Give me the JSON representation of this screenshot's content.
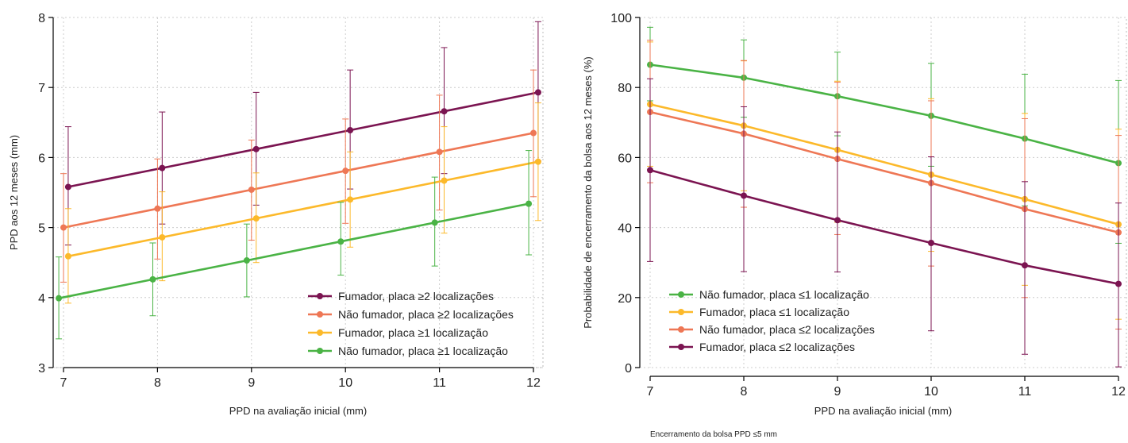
{
  "chart_data": [
    {
      "type": "line",
      "title": "",
      "xlabel": "PPD na avaliação inicial (mm)",
      "ylabel": "PPD aos 12 meses (mm)",
      "xlim": [
        7,
        12
      ],
      "ylim": [
        3,
        8
      ],
      "xticks": [
        7,
        8,
        9,
        10,
        11,
        12
      ],
      "yticks": [
        3,
        4,
        5,
        6,
        7,
        8
      ],
      "grid": true,
      "legend_position": "bottom-right",
      "series": [
        {
          "name": "Fumador, placa ≥2 localizações",
          "color": "#7b1451",
          "offset": 0.05,
          "x": [
            7,
            8,
            9,
            10,
            11,
            12
          ],
          "y": [
            5.58,
            5.85,
            6.12,
            6.39,
            6.66,
            6.93
          ],
          "lower": [
            4.75,
            5.05,
            5.32,
            5.55,
            5.77,
            5.95
          ],
          "upper": [
            6.44,
            6.65,
            6.93,
            7.25,
            7.57,
            7.94
          ]
        },
        {
          "name": "Não fumador, placa ≥2 localizações",
          "color": "#ee7755",
          "offset": 0.0,
          "x": [
            7,
            8,
            9,
            10,
            11,
            12
          ],
          "y": [
            5.0,
            5.27,
            5.54,
            5.81,
            6.08,
            6.35
          ],
          "lower": [
            4.22,
            4.55,
            4.82,
            5.06,
            5.25,
            5.44
          ],
          "upper": [
            5.77,
            5.98,
            6.25,
            6.55,
            6.89,
            7.25
          ]
        },
        {
          "name": "Fumador, placa  ≥1 localização",
          "color": "#fcb92a",
          "offset": 0.05,
          "x": [
            7,
            8,
            9,
            10,
            11,
            12
          ],
          "y": [
            4.59,
            4.86,
            5.13,
            5.4,
            5.67,
            5.94
          ],
          "lower": [
            3.92,
            4.24,
            4.5,
            4.72,
            4.92,
            5.1
          ],
          "upper": [
            5.27,
            5.51,
            5.78,
            6.08,
            6.44,
            6.78
          ]
        },
        {
          "name": "Não fumador, placa ≥1 localização",
          "color": "#4ab345",
          "offset": -0.05,
          "x": [
            7,
            8,
            9,
            10,
            11,
            12
          ],
          "y": [
            3.99,
            4.26,
            4.53,
            4.8,
            5.07,
            5.34
          ],
          "lower": [
            3.41,
            3.74,
            4.01,
            4.32,
            4.45,
            4.61
          ],
          "upper": [
            4.58,
            4.78,
            5.05,
            5.36,
            5.72,
            6.1
          ]
        }
      ]
    },
    {
      "type": "line",
      "title": "",
      "xlabel": "PPD na avaliação inicial (mm)",
      "ylabel": "Probabilidade de encerramento da bolsa aos 12 meses (%)",
      "note": "Encerramento da bolsa PPD ≤5 mm",
      "xlim": [
        7,
        12
      ],
      "ylim": [
        0,
        100
      ],
      "xticks": [
        7,
        8,
        9,
        10,
        11,
        12
      ],
      "yticks": [
        0,
        20,
        40,
        60,
        80,
        100
      ],
      "grid": true,
      "legend_position": "bottom-left",
      "series": [
        {
          "name": "Não fumador, placa ≤1 localização",
          "color": "#4ab345",
          "offset": 0.0,
          "x": [
            7,
            8,
            9,
            10,
            11,
            12
          ],
          "y": [
            86.5,
            82.8,
            77.5,
            71.9,
            65.4,
            58.4
          ],
          "lower": [
            76.2,
            71.5,
            66.2,
            57.5,
            46.2,
            35.5
          ],
          "upper": [
            97.2,
            93.6,
            90.1,
            86.9,
            83.8,
            82.0
          ]
        },
        {
          "name": "Fumador, placa  ≤1 localização",
          "color": "#fcb92a",
          "offset": 0.0,
          "x": [
            7,
            8,
            9,
            10,
            11,
            12
          ],
          "y": [
            75.2,
            69.1,
            62.2,
            55.1,
            48.1,
            40.9
          ],
          "lower": [
            57.5,
            50.5,
            41.5,
            33.2,
            23.5,
            13.8
          ],
          "upper": [
            93.0,
            87.6,
            81.8,
            76.8,
            72.6,
            68.1
          ]
        },
        {
          "name": "Não fumador, placa ≤2 localizações",
          "color": "#ee7755",
          "offset": 0.0,
          "x": [
            7,
            8,
            9,
            10,
            11,
            12
          ],
          "y": [
            73.0,
            66.8,
            59.6,
            52.7,
            45.3,
            38.6
          ],
          "lower": [
            52.8,
            45.8,
            38.0,
            29.0,
            20.0,
            11.0
          ],
          "upper": [
            93.5,
            87.7,
            81.5,
            76.2,
            71.1,
            66.3
          ]
        },
        {
          "name": "Fumador, placa ≤2 localizações",
          "color": "#7b1451",
          "offset": 0.0,
          "x": [
            7,
            8,
            9,
            10,
            11,
            12
          ],
          "y": [
            56.4,
            49.1,
            42.1,
            35.6,
            29.2,
            23.9
          ],
          "lower": [
            30.3,
            27.4,
            27.3,
            10.5,
            3.8,
            0.2
          ],
          "upper": [
            82.5,
            74.5,
            67.3,
            60.2,
            53.1,
            47.0
          ]
        }
      ]
    }
  ]
}
